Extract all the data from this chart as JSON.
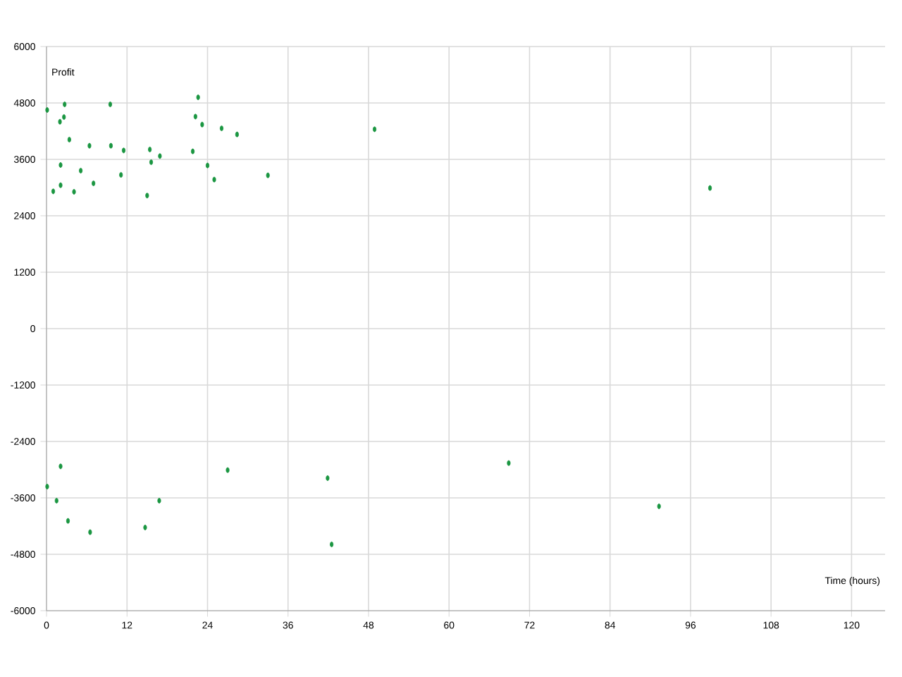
{
  "chart_data": {
    "type": "scatter",
    "xlabel": "Time (hours)",
    "ylabel": "Profit",
    "xlim": [
      0,
      125
    ],
    "xticks": [
      0,
      12,
      24,
      36,
      48,
      60,
      72,
      84,
      96,
      108,
      120
    ],
    "ylim": [
      -6000,
      6000
    ],
    "yticks": [
      -6000,
      -4800,
      -3600,
      -2400,
      -1200,
      0,
      1200,
      2400,
      3600,
      4800,
      6000
    ],
    "grid": true,
    "series": [
      {
        "color": "#1a9641",
        "x": [
          0.1,
          1,
          2,
          2.1,
          2.1,
          2.6,
          2.7,
          3.4,
          4.1,
          5.1,
          6.4,
          7.0,
          9.5,
          9.6,
          11.1,
          11.5,
          15.0,
          15.4,
          15.6,
          16.9,
          21.8,
          22.2,
          22.6,
          23.2,
          24.0,
          25.0,
          26.1,
          28.4,
          33.0,
          48.9,
          98.9,
          0.1,
          2.1,
          1.5,
          3.2,
          6.5,
          14.7,
          16.8,
          27.0,
          41.9,
          42.5,
          68.9,
          91.3
        ],
        "values": [
          4650,
          2920,
          4400,
          3480,
          3050,
          4500,
          4770,
          4020,
          2910,
          3360,
          3890,
          3090,
          4770,
          3890,
          3270,
          3790,
          2830,
          3810,
          3540,
          3670,
          3770,
          4510,
          4920,
          4340,
          3470,
          3170,
          4260,
          4130,
          3260,
          4240,
          2990,
          -3360,
          -2930,
          -3660,
          -4090,
          -4330,
          -4230,
          -3660,
          -3010,
          -3180,
          -4590,
          -2860,
          -3780
        ]
      }
    ]
  }
}
